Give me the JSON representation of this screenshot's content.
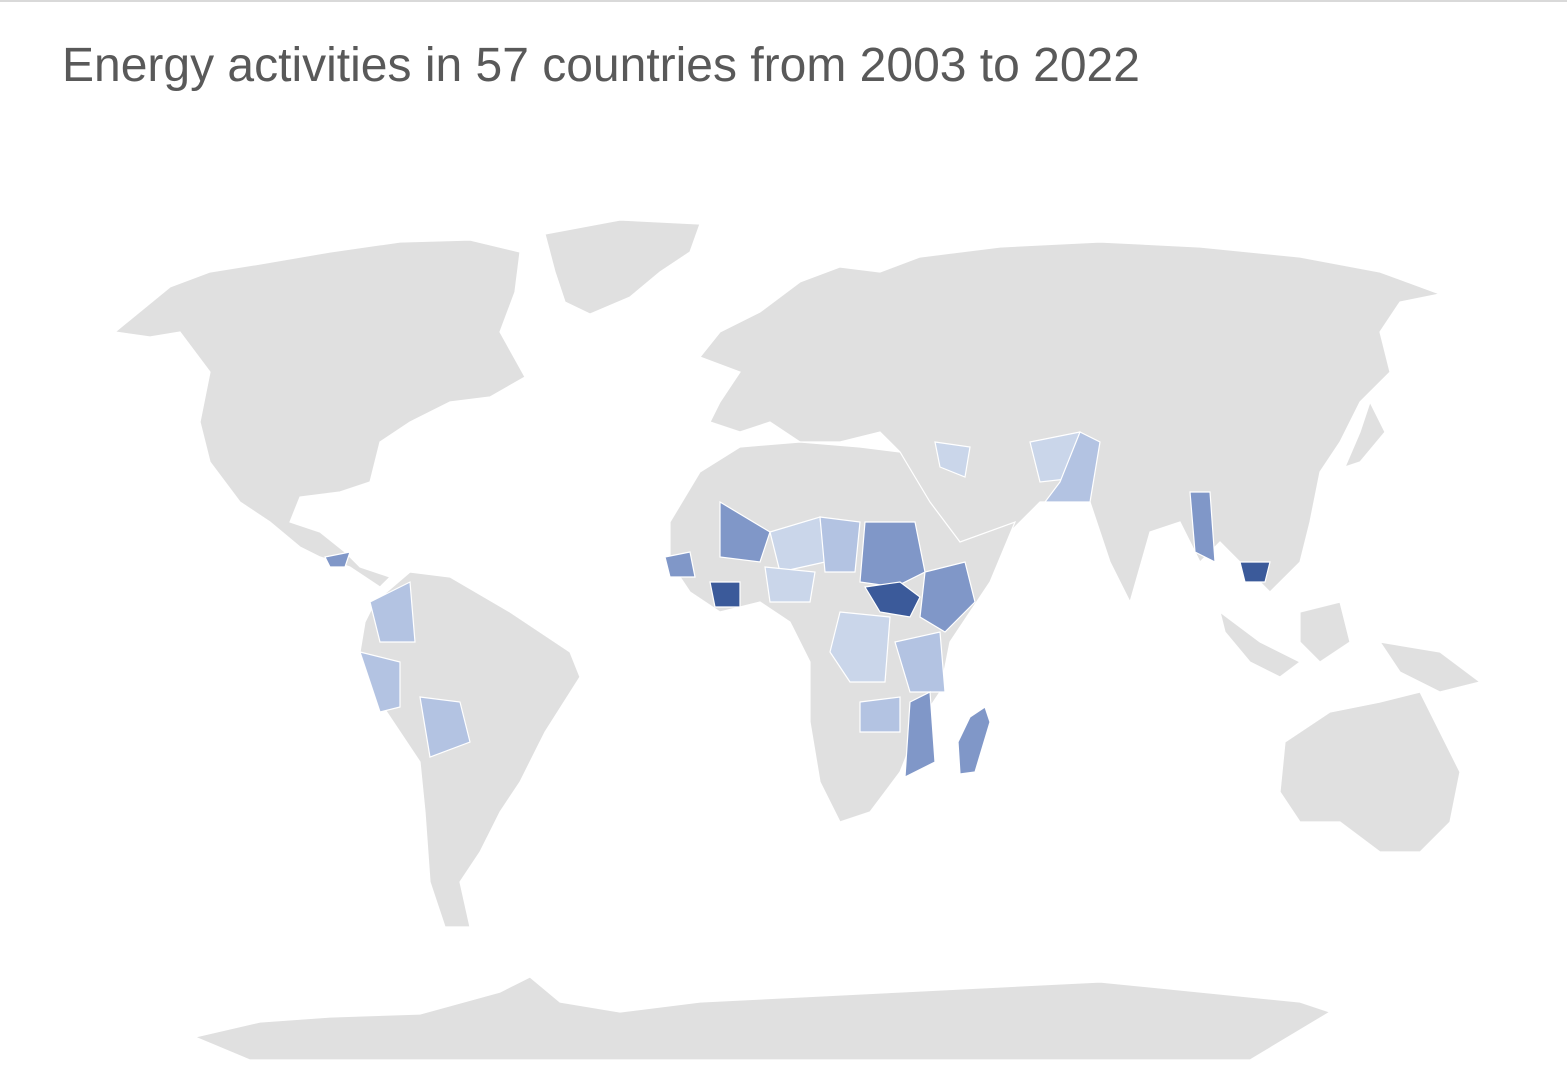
{
  "title": "Energy activities in 57 countries from 2003 to 2022"
}
